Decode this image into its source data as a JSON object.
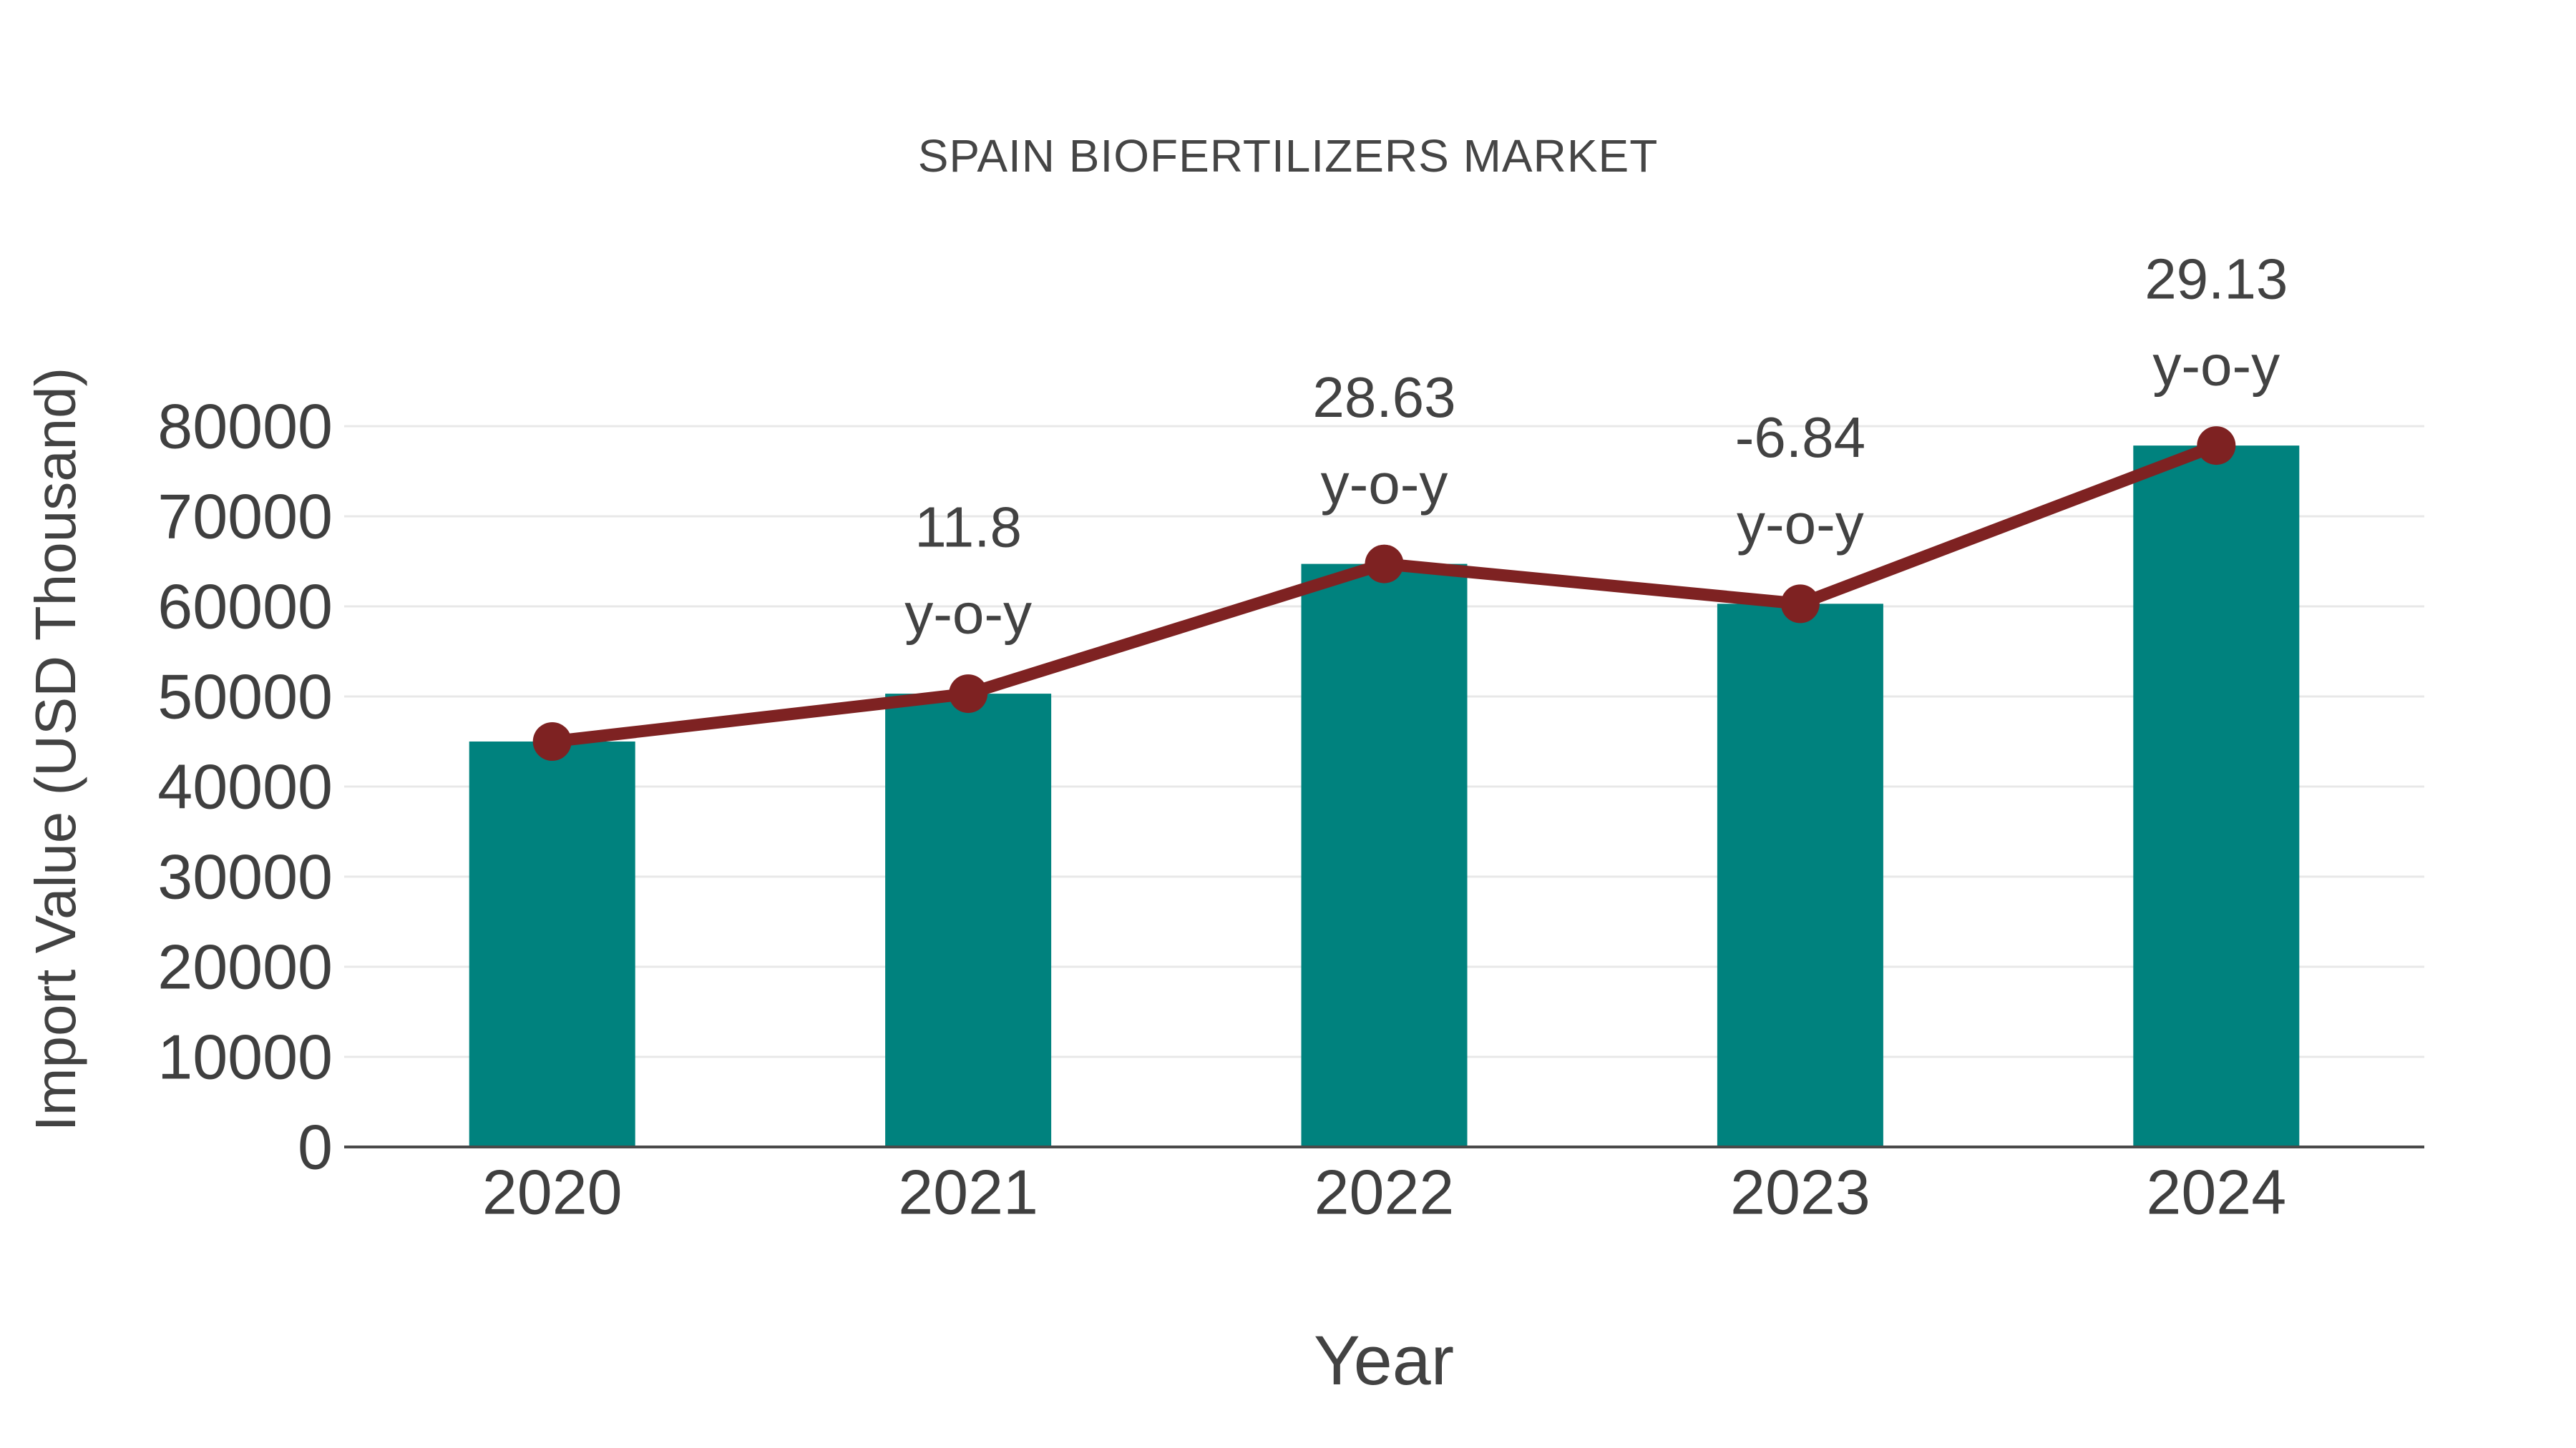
{
  "chart_data": {
    "type": "bar",
    "title": "SPAIN BIOFERTILIZERS MARKET",
    "xlabel": "Year",
    "ylabel": "Import Value (USD Thousand)",
    "categories": [
      "2020",
      "2021",
      "2022",
      "2023",
      "2024"
    ],
    "values": [
      45000,
      50310,
      64714,
      60288,
      77849
    ],
    "line_overlay_values": [
      45000,
      50310,
      64714,
      60288,
      77849
    ],
    "annotations": [
      {
        "category": "2021",
        "label": "11.8",
        "sublabel": "y-o-y"
      },
      {
        "category": "2022",
        "label": "28.63",
        "sublabel": "y-o-y"
      },
      {
        "category": "2023",
        "label": "-6.84",
        "sublabel": "y-o-y"
      },
      {
        "category": "2024",
        "label": "29.13",
        "sublabel": "y-o-y"
      }
    ],
    "yticks": [
      0,
      10000,
      20000,
      30000,
      40000,
      50000,
      60000,
      70000,
      80000
    ],
    "ylim": [
      0,
      80000
    ],
    "grid": "horizontal",
    "legend": "none",
    "colors": {
      "bar": "#00827E",
      "line": "#7E2222",
      "marker": "#7E2222",
      "grid": "#E8E8E8",
      "axis": "#4A4A4A",
      "tick_text": "#3F3F3F",
      "annotation_text": "#424242",
      "title_text": "#454545"
    }
  }
}
